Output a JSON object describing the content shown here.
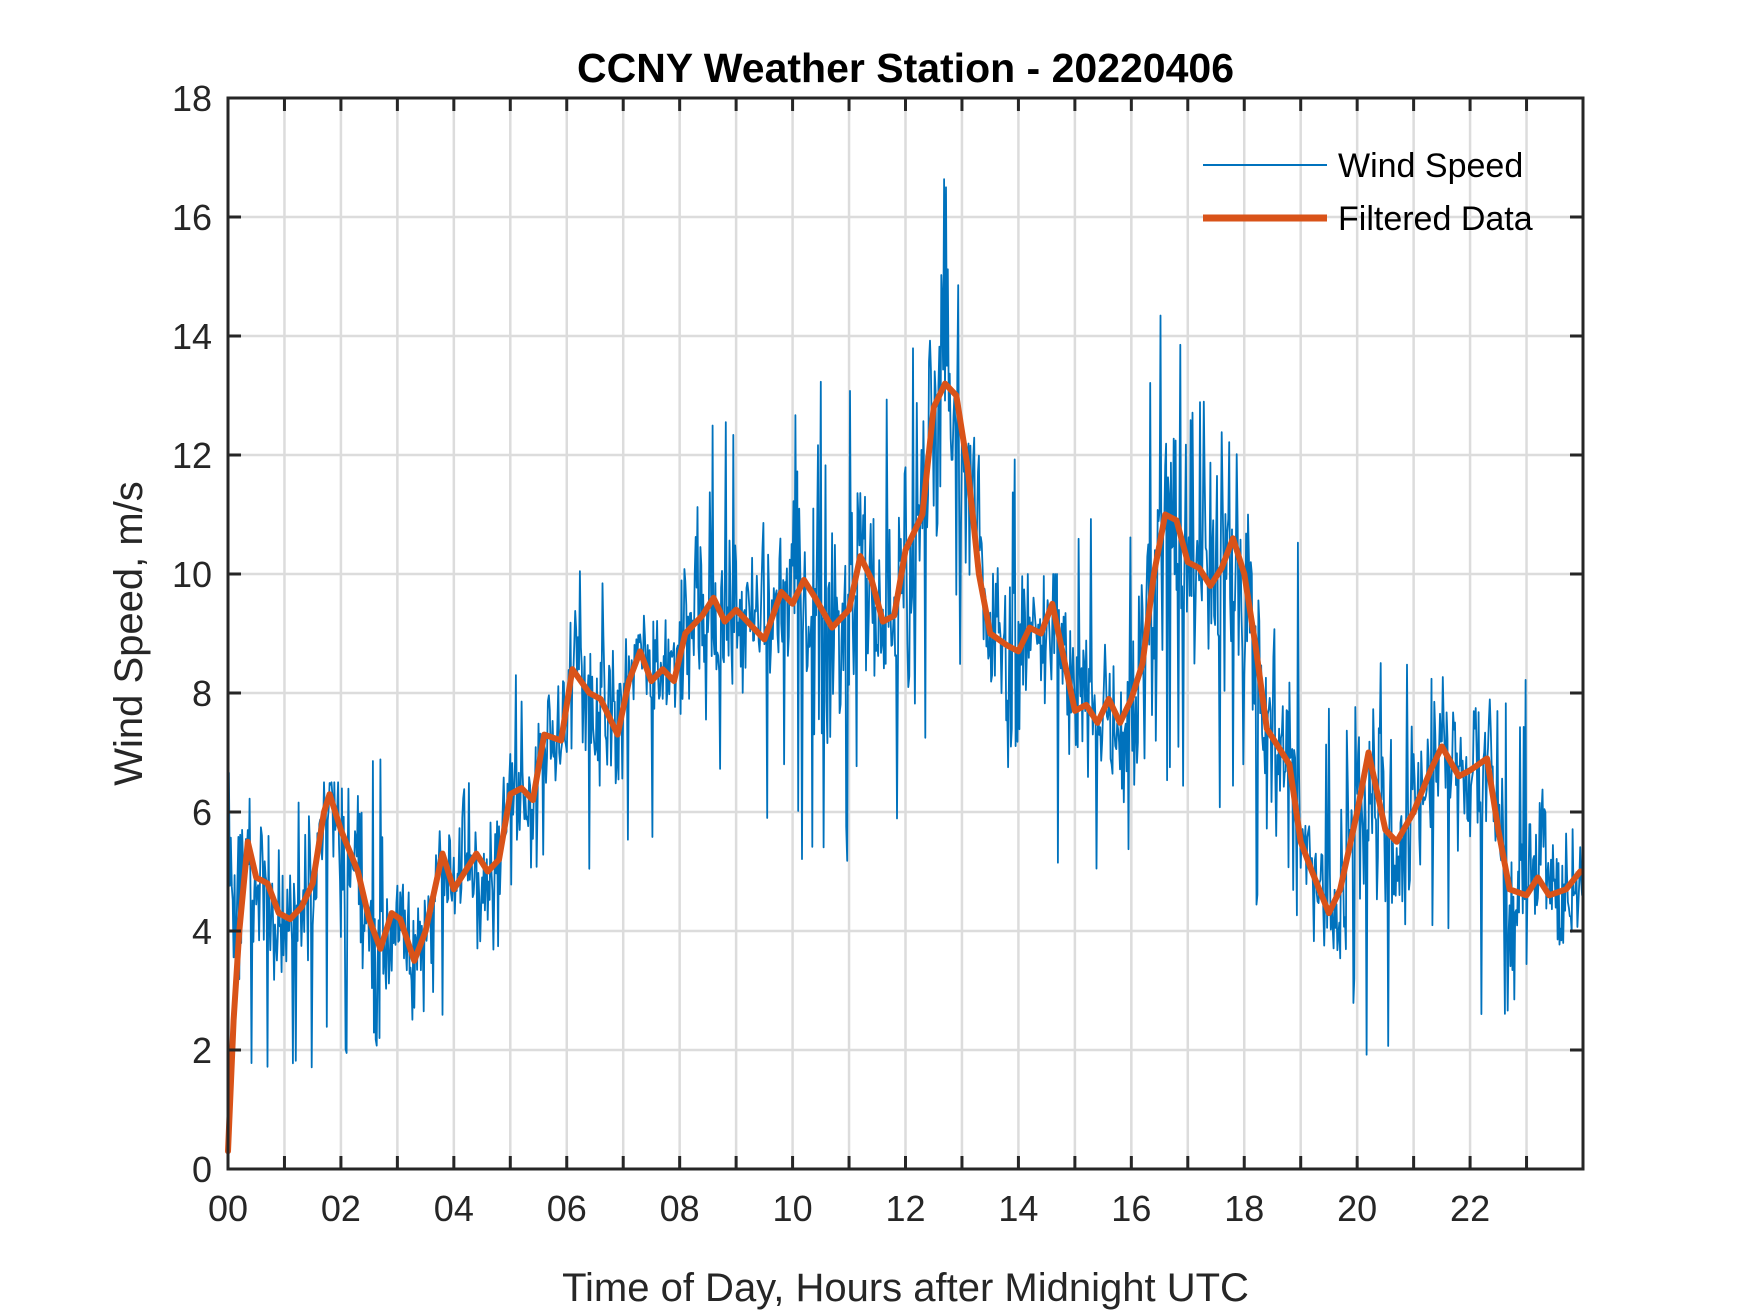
{
  "chart_data": {
    "type": "line",
    "title": "CCNY Weather Station - 20220406",
    "xlabel": "Time of Day, Hours after Midnight UTC",
    "ylabel": "Wind Speed, m/s",
    "xlim": [
      0,
      24
    ],
    "ylim": [
      0,
      18
    ],
    "grid": true,
    "legend_position": "top-right",
    "x_ticks": [
      0,
      2,
      4,
      6,
      8,
      10,
      12,
      14,
      16,
      18,
      20,
      22
    ],
    "x_tick_labels": [
      "00",
      "02",
      "04",
      "06",
      "08",
      "10",
      "12",
      "14",
      "16",
      "18",
      "20",
      "22"
    ],
    "x_minor_grid_step_hours": 1,
    "y_ticks": [
      0,
      2,
      4,
      6,
      8,
      10,
      12,
      14,
      16,
      18
    ],
    "y_tick_labels": [
      "0",
      "2",
      "4",
      "6",
      "8",
      "10",
      "12",
      "14",
      "16",
      "18"
    ],
    "series": [
      {
        "name": "Wind Speed",
        "color": "#0072BD",
        "style": "thin",
        "hourly_envelope": {
          "hours": [
            0,
            1,
            2,
            3,
            4,
            5,
            6,
            7,
            8,
            9,
            10,
            11,
            12,
            13,
            14,
            15,
            16,
            17,
            18,
            19,
            20,
            21,
            22,
            23
          ],
          "min": [
            1.2,
            1.7,
            1.6,
            2.5,
            3.3,
            4.5,
            4.5,
            5.5,
            6.0,
            5.8,
            4.8,
            5.6,
            7.0,
            6.7,
            4.7,
            5.0,
            6.2,
            6.0,
            3.4,
            2.4,
            1.5,
            3.0,
            2.6,
            1.6
          ],
          "max": [
            6.9,
            6.5,
            7.9,
            5.9,
            6.6,
            8.4,
            10.7,
            9.3,
            12.7,
            11.0,
            13.4,
            13.5,
            17.4,
            12.3,
            10.0,
            11.5,
            14.7,
            13.8,
            11.0,
            7.9,
            8.6,
            8.3,
            8.3,
            6.4
          ]
        }
      },
      {
        "name": "Filtered Data",
        "color": "#D95319",
        "style": "thick",
        "x": [
          0.0,
          0.1,
          0.2,
          0.35,
          0.5,
          0.7,
          0.9,
          1.1,
          1.3,
          1.5,
          1.7,
          1.8,
          2.0,
          2.3,
          2.5,
          2.7,
          2.9,
          3.05,
          3.3,
          3.5,
          3.8,
          4.0,
          4.2,
          4.4,
          4.6,
          4.8,
          5.0,
          5.2,
          5.4,
          5.6,
          5.9,
          6.1,
          6.4,
          6.6,
          6.9,
          7.1,
          7.3,
          7.5,
          7.7,
          7.9,
          8.1,
          8.4,
          8.6,
          8.8,
          9.0,
          9.3,
          9.5,
          9.8,
          10.0,
          10.2,
          10.4,
          10.7,
          11.0,
          11.2,
          11.4,
          11.6,
          11.8,
          12.0,
          12.3,
          12.5,
          12.7,
          12.9,
          13.1,
          13.3,
          13.5,
          13.8,
          14.0,
          14.2,
          14.4,
          14.6,
          14.8,
          15.0,
          15.2,
          15.4,
          15.6,
          15.8,
          16.0,
          16.2,
          16.4,
          16.6,
          16.8,
          17.0,
          17.2,
          17.4,
          17.6,
          17.8,
          18.0,
          18.2,
          18.4,
          18.6,
          18.8,
          19.0,
          19.2,
          19.5,
          19.7,
          20.0,
          20.2,
          20.5,
          20.7,
          21.0,
          21.3,
          21.5,
          21.8,
          22.0,
          22.3,
          22.5,
          22.7,
          23.0,
          23.2,
          23.4,
          23.7,
          23.95
        ],
        "y": [
          0.3,
          2.5,
          4.0,
          5.5,
          4.9,
          4.8,
          4.3,
          4.2,
          4.4,
          4.8,
          6.0,
          6.3,
          5.7,
          5.0,
          4.2,
          3.7,
          4.3,
          4.2,
          3.5,
          4.0,
          5.3,
          4.7,
          5.0,
          5.3,
          5.0,
          5.2,
          6.3,
          6.4,
          6.2,
          7.3,
          7.2,
          8.4,
          8.0,
          7.9,
          7.3,
          8.2,
          8.7,
          8.2,
          8.4,
          8.2,
          9.0,
          9.3,
          9.6,
          9.2,
          9.4,
          9.1,
          8.9,
          9.7,
          9.5,
          9.9,
          9.6,
          9.1,
          9.4,
          10.3,
          9.9,
          9.2,
          9.3,
          10.4,
          11.0,
          12.8,
          13.2,
          13.0,
          11.8,
          10.0,
          9.0,
          8.8,
          8.7,
          9.1,
          9.0,
          9.5,
          8.6,
          7.7,
          7.8,
          7.5,
          7.9,
          7.5,
          7.9,
          8.5,
          10.0,
          11.0,
          10.9,
          10.2,
          10.1,
          9.8,
          10.1,
          10.6,
          10.0,
          8.8,
          7.4,
          7.1,
          6.8,
          5.5,
          5.0,
          4.3,
          4.7,
          6.0,
          7.0,
          5.7,
          5.5,
          6.0,
          6.7,
          7.1,
          6.6,
          6.7,
          6.9,
          5.7,
          4.7,
          4.6,
          4.9,
          4.6,
          4.7,
          5.0
        ]
      }
    ]
  },
  "legend": {
    "items": [
      {
        "label": "Wind Speed",
        "color": "#0072BD"
      },
      {
        "label": "Filtered Data",
        "color": "#D95319"
      }
    ]
  }
}
